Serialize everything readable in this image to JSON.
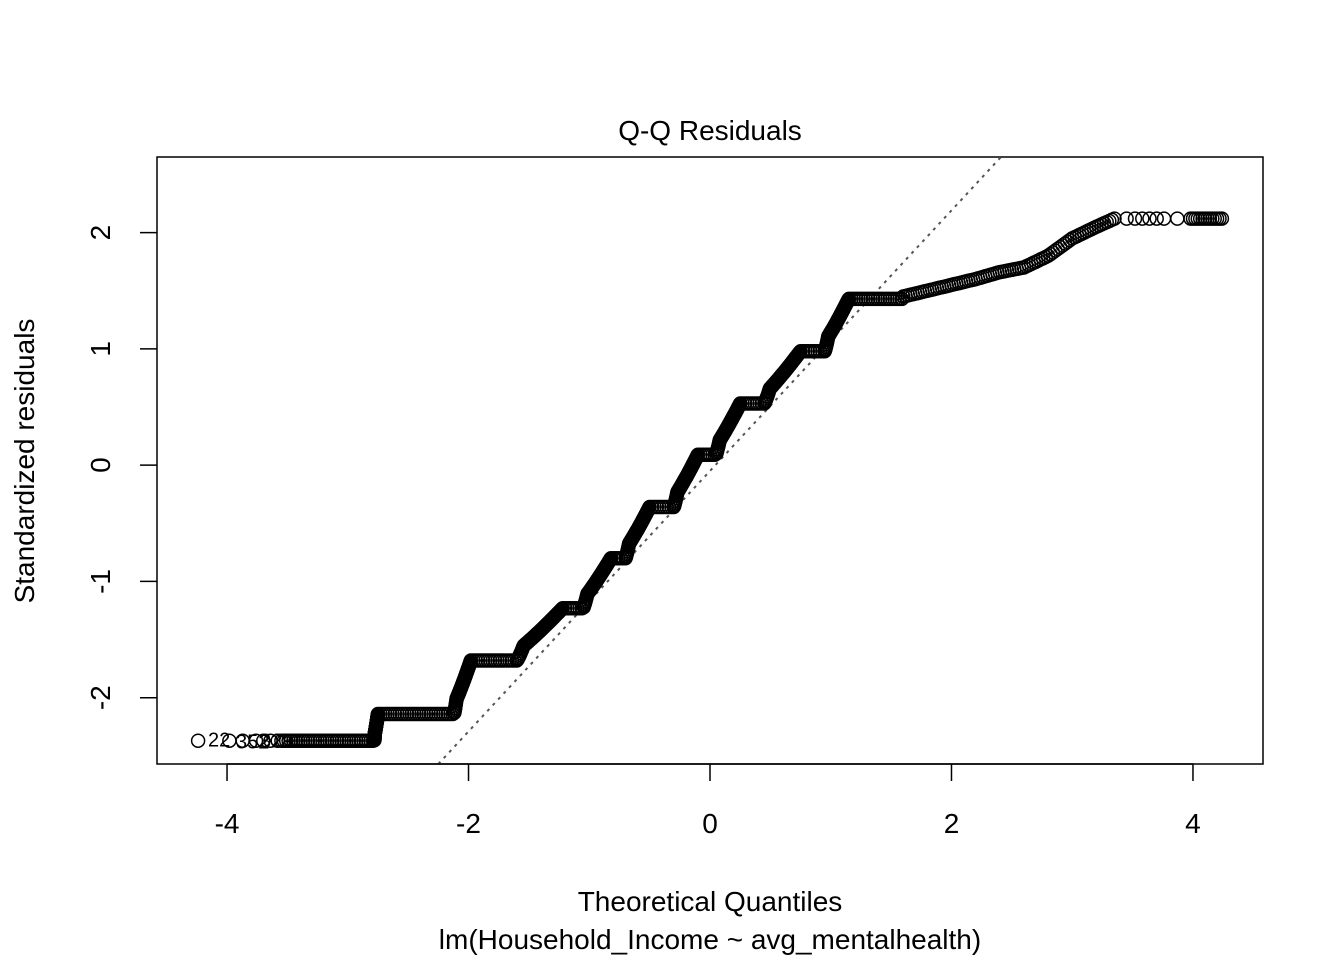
{
  "chart_data": {
    "type": "scatter",
    "title": "Q-Q Residuals",
    "xlabel": "Theoretical Quantiles",
    "subtitle": "lm(Household_Income ~ avg_mentalhealth)",
    "ylabel": "Standardized residuals",
    "xlim": [
      -4.58,
      4.58
    ],
    "ylim": [
      -2.57,
      2.65
    ],
    "xticks": [
      -4,
      -2,
      0,
      2,
      4
    ],
    "yticks": [
      -2,
      -1,
      0,
      1,
      2
    ],
    "xtick_labels": [
      "-4",
      "-2",
      "0",
      "2",
      "4"
    ],
    "ytick_labels": [
      "-2",
      "-1",
      "0",
      "1",
      "2"
    ],
    "grid": false,
    "reference_line": {
      "style": "dotted",
      "color": "#555555",
      "points": [
        [
          -2.25,
          -2.57
        ],
        [
          2.41,
          2.65
        ]
      ]
    },
    "point_labels": [
      "22",
      "352",
      "3291"
    ],
    "step_levels": [
      {
        "y": -2.37,
        "x_start": -3.55,
        "x_end": -2.78
      },
      {
        "y": -2.14,
        "x_start": -2.75,
        "x_end": -2.12
      },
      {
        "y": -1.68,
        "x_start": -1.98,
        "x_end": -1.6
      },
      {
        "y": -1.23,
        "x_start": -1.22,
        "x_end": -1.05
      },
      {
        "y": -0.8,
        "x_start": -0.82,
        "x_end": -0.7
      },
      {
        "y": -0.36,
        "x_start": -0.5,
        "x_end": -0.3
      },
      {
        "y": 0.09,
        "x_start": -0.1,
        "x_end": 0.05
      },
      {
        "y": 0.53,
        "x_start": 0.25,
        "x_end": 0.45
      },
      {
        "y": 0.98,
        "x_start": 0.75,
        "x_end": 0.95
      },
      {
        "y": 1.43,
        "x_start": 1.15,
        "x_end": 1.6
      }
    ],
    "upper_tail": [
      [
        1.6,
        1.45
      ],
      [
        1.8,
        1.5
      ],
      [
        2.0,
        1.55
      ],
      [
        2.2,
        1.6
      ],
      [
        2.4,
        1.66
      ],
      [
        2.6,
        1.7
      ],
      [
        2.8,
        1.8
      ],
      [
        3.0,
        1.95
      ],
      [
        3.2,
        2.05
      ],
      [
        3.35,
        2.12
      ],
      [
        3.45,
        2.12
      ],
      [
        3.52,
        2.12
      ],
      [
        3.58,
        2.12
      ],
      [
        3.64,
        2.12
      ],
      [
        3.7,
        2.12
      ],
      [
        3.76,
        2.12
      ],
      [
        3.87,
        2.12
      ],
      [
        3.98,
        2.12
      ],
      [
        4.24,
        2.12
      ]
    ],
    "lower_tail": [
      [
        -4.24,
        -2.37
      ],
      [
        -3.98,
        -2.37
      ],
      [
        -3.87,
        -2.37
      ],
      [
        -3.76,
        -2.37
      ],
      [
        -3.7,
        -2.37
      ],
      [
        -3.64,
        -2.37
      ],
      [
        -3.58,
        -2.37
      ]
    ]
  }
}
